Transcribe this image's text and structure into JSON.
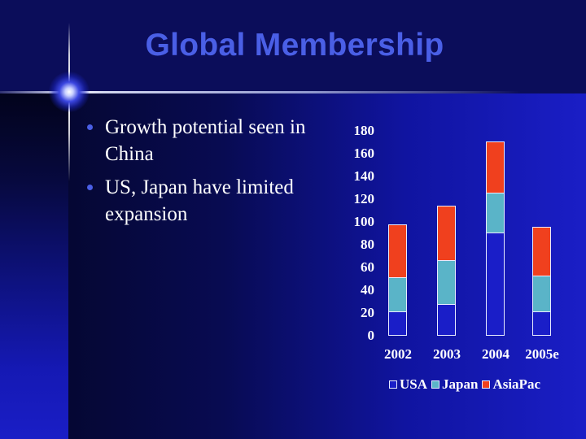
{
  "slide": {
    "title": "Global Membership",
    "bullets": [
      {
        "text": "Growth potential seen in China"
      },
      {
        "text": "US, Japan have limited expansion"
      }
    ]
  },
  "colors": {
    "title": "#4a5fe6",
    "usa": "#1a1ec8",
    "japan": "#5ab4c8",
    "asiapac": "#f0401e"
  },
  "chart_data": {
    "type": "bar",
    "stacked": true,
    "title": "",
    "xlabel": "",
    "ylabel": "",
    "categories": [
      "2002",
      "2003",
      "2004",
      "2005e"
    ],
    "series": [
      {
        "name": "USA",
        "values": [
          20,
          27,
          90,
          20
        ]
      },
      {
        "name": "Japan",
        "values": [
          31,
          39,
          35,
          32
        ]
      },
      {
        "name": "AsiaPac",
        "values": [
          47,
          48,
          46,
          44
        ]
      }
    ],
    "totals": [
      98,
      114,
      171,
      96
    ],
    "ylim": [
      0,
      180
    ],
    "yticks": [
      "180",
      "160",
      "140",
      "120",
      "100",
      "80",
      "60",
      "40",
      "20",
      "0"
    ],
    "grid": false,
    "legend_position": "bottom",
    "legend": [
      "USA",
      "Japan",
      "AsiaPac"
    ]
  }
}
